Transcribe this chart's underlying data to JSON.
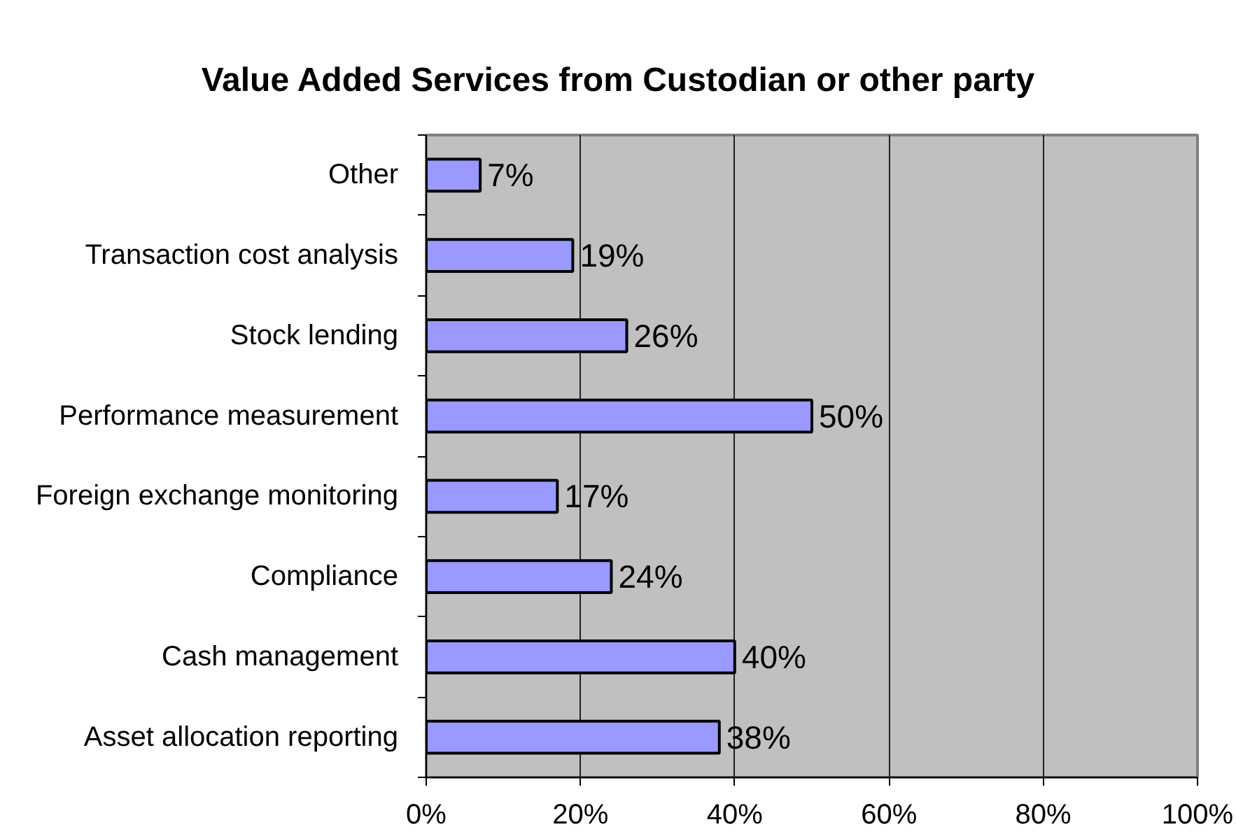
{
  "chart_data": {
    "type": "bar",
    "orientation": "horizontal",
    "title": "Value Added Services from Custodian or other party",
    "categories": [
      "Other",
      "Transaction cost analysis",
      "Stock lending",
      "Performance measurement",
      "Foreign exchange monitoring",
      "Compliance",
      "Cash management",
      "Asset allocation reporting"
    ],
    "values": [
      7,
      19,
      26,
      50,
      17,
      24,
      40,
      38
    ],
    "value_labels": [
      "7%",
      "19%",
      "26%",
      "50%",
      "17%",
      "24%",
      "40%",
      "38%"
    ],
    "color": "#9999ff",
    "xlim": [
      0,
      100
    ],
    "xticks": [
      {
        "value": 0,
        "label": "0%"
      },
      {
        "value": 20,
        "label": "20%"
      },
      {
        "value": 40,
        "label": "40%"
      },
      {
        "value": 60,
        "label": "60%"
      },
      {
        "value": 80,
        "label": "80%"
      },
      {
        "value": 100,
        "label": "100%"
      }
    ],
    "grid": "x"
  }
}
